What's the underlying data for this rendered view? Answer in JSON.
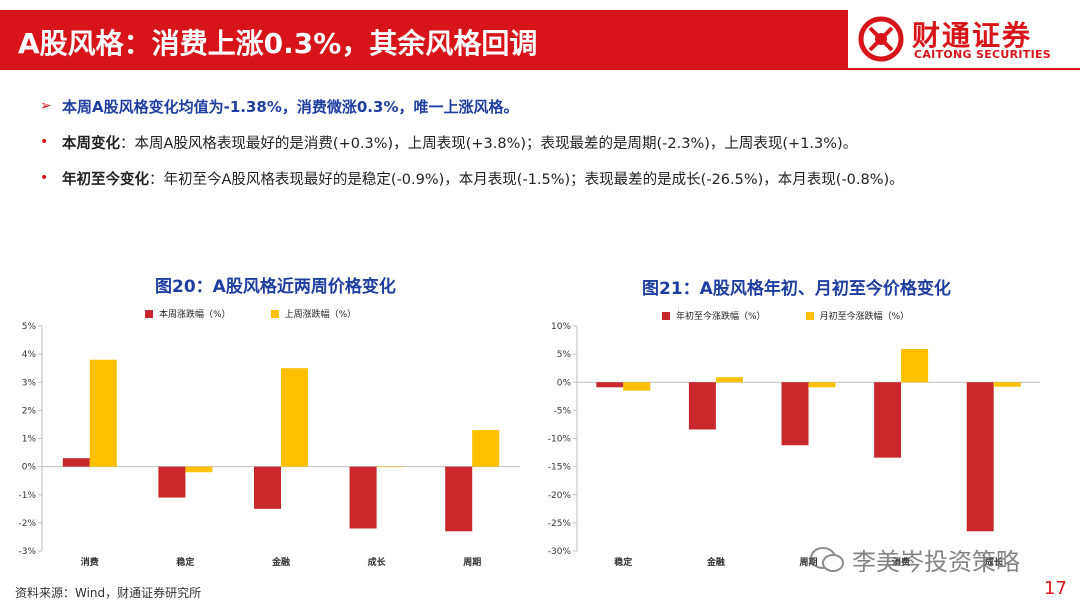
{
  "header": {
    "title": "A股风格：消费上涨0.3%，其余风格回调",
    "logo_cn": "财通证券",
    "logo_en": "CAITONG SECURITIES"
  },
  "colors": {
    "red": "#C8282C",
    "yellow": "#FFC000",
    "blue_title": "#1F3FA0",
    "brand": "#D7141A"
  },
  "bullets": {
    "headline": "本周A股风格变化均值为-1.38%，消费微涨0.3%，唯一上涨风格。",
    "weekly_label": "本周变化",
    "weekly_text": "：本周A股风格表现最好的是消费(+0.3%)，上周表现(+3.8%)；表现最差的是周期(-2.3%)，上周表现(+1.3%)。",
    "ytd_label": "年初至今变化",
    "ytd_text": "：年初至今A股风格表现最好的是稳定(-0.9%)，本月表现(-1.5%)；表现最差的是成长(-26.5%)，本月表现(-0.8%)。"
  },
  "chart_data": [
    {
      "type": "bar",
      "title": "图20：A股风格近两周价格变化",
      "categories": [
        "消费",
        "稳定",
        "金融",
        "成长",
        "周期"
      ],
      "series": [
        {
          "name": "本周涨跌幅（%）",
          "color": "#C8282C",
          "values": [
            0.3,
            -1.1,
            -1.5,
            -2.2,
            -2.3
          ]
        },
        {
          "name": "上周涨跌幅（%）",
          "color": "#FFC000",
          "values": [
            3.8,
            -0.2,
            3.5,
            0.0,
            1.3
          ]
        }
      ],
      "ylim": [
        -3,
        5
      ],
      "yticks": [
        "-3%",
        "-2%",
        "-1%",
        "0%",
        "1%",
        "2%",
        "3%",
        "4%",
        "5%"
      ],
      "legend": "top"
    },
    {
      "type": "bar",
      "title": "图21：A股风格年初、月初至今价格变化",
      "categories": [
        "稳定",
        "金融",
        "周期",
        "消费",
        "成长"
      ],
      "series": [
        {
          "name": "年初至今涨跌幅（%）",
          "color": "#C8282C",
          "values": [
            -0.9,
            -8.4,
            -11.2,
            -13.4,
            -26.5
          ]
        },
        {
          "name": "月初至今涨跌幅（%）",
          "color": "#FFC000",
          "values": [
            -1.5,
            0.9,
            -0.9,
            5.9,
            -0.8
          ]
        }
      ],
      "ylim": [
        -30,
        10
      ],
      "yticks": [
        "-30%",
        "-25%",
        "-20%",
        "-15%",
        "-10%",
        "-5%",
        "0%",
        "5%",
        "10%"
      ],
      "legend": "top"
    }
  ],
  "footer": {
    "source": "资料来源：Wind，财通证券研究所",
    "page": "17",
    "watermark": "李美岑投资策略"
  }
}
